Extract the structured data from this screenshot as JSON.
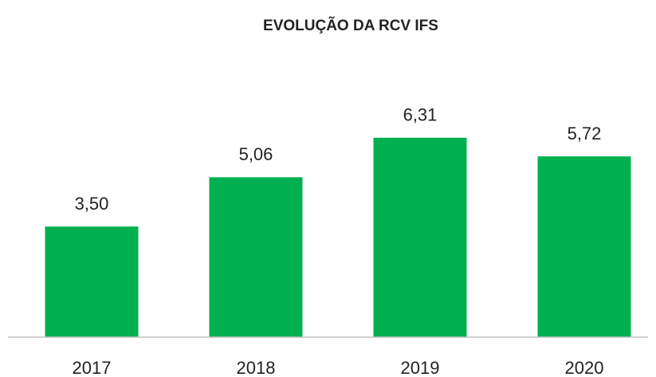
{
  "chart_data": {
    "type": "bar",
    "title": "EVOLUÇÃO DA RCV IFS",
    "categories": [
      "2017",
      "2018",
      "2019",
      "2020"
    ],
    "values": [
      3.5,
      5.06,
      6.31,
      5.72
    ],
    "value_labels": [
      "3,50",
      "5,06",
      "6,31",
      "5,72"
    ],
    "color": "#00b050"
  }
}
